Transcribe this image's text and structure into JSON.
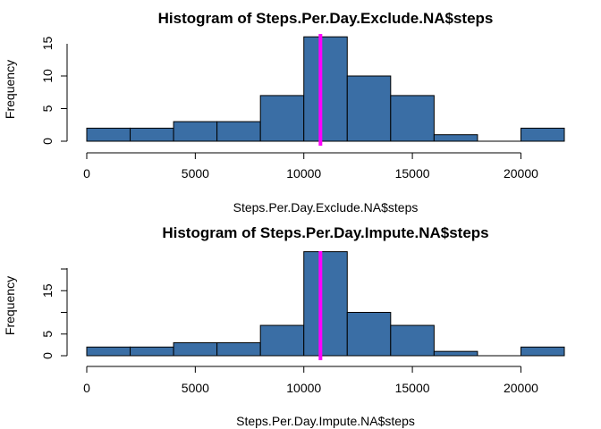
{
  "chart_data": [
    {
      "type": "bar",
      "title": "Histogram of Steps.Per.Day.Exclude.NA$steps",
      "xlabel": "Steps.Per.Day.Exclude.NA$steps",
      "ylabel": "Frequency",
      "bins": [
        {
          "start": 0,
          "end": 2000,
          "count": 2
        },
        {
          "start": 2000,
          "end": 4000,
          "count": 2
        },
        {
          "start": 4000,
          "end": 6000,
          "count": 3
        },
        {
          "start": 6000,
          "end": 8000,
          "count": 3
        },
        {
          "start": 8000,
          "end": 10000,
          "count": 7
        },
        {
          "start": 10000,
          "end": 12000,
          "count": 16
        },
        {
          "start": 12000,
          "end": 14000,
          "count": 10
        },
        {
          "start": 14000,
          "end": 16000,
          "count": 7
        },
        {
          "start": 16000,
          "end": 18000,
          "count": 1
        },
        {
          "start": 18000,
          "end": 20000,
          "count": 0
        },
        {
          "start": 20000,
          "end": 22000,
          "count": 2
        }
      ],
      "xticks": [
        0,
        5000,
        10000,
        15000,
        20000
      ],
      "yticks": [
        0,
        5,
        10,
        15
      ],
      "xlim": [
        0,
        22000
      ],
      "ylim": [
        0,
        16
      ],
      "reference_line": {
        "x": 10766,
        "color": "#ff00ff"
      },
      "bar_color": "#3a6ea5",
      "grid": false
    },
    {
      "type": "bar",
      "title": "Histogram of Steps.Per.Day.Impute.NA$steps",
      "xlabel": "Steps.Per.Day.Impute.NA$steps",
      "ylabel": "Frequency",
      "bins": [
        {
          "start": 0,
          "end": 2000,
          "count": 2
        },
        {
          "start": 2000,
          "end": 4000,
          "count": 2
        },
        {
          "start": 4000,
          "end": 6000,
          "count": 3
        },
        {
          "start": 6000,
          "end": 8000,
          "count": 3
        },
        {
          "start": 8000,
          "end": 10000,
          "count": 7
        },
        {
          "start": 10000,
          "end": 12000,
          "count": 24
        },
        {
          "start": 12000,
          "end": 14000,
          "count": 10
        },
        {
          "start": 14000,
          "end": 16000,
          "count": 7
        },
        {
          "start": 16000,
          "end": 18000,
          "count": 1
        },
        {
          "start": 18000,
          "end": 20000,
          "count": 0
        },
        {
          "start": 20000,
          "end": 22000,
          "count": 2
        }
      ],
      "xticks": [
        0,
        5000,
        10000,
        15000,
        20000
      ],
      "yticks": [
        0,
        5,
        15
      ],
      "xlim": [
        0,
        22000
      ],
      "ylim": [
        0,
        24
      ],
      "reference_line": {
        "x": 10766,
        "color": "#ff00ff"
      },
      "bar_color": "#3a6ea5",
      "grid": false
    }
  ]
}
